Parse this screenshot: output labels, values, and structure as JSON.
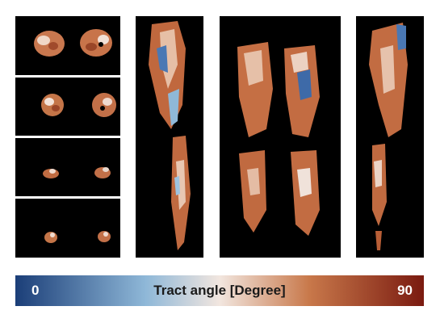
{
  "figure": {
    "panels": [
      {
        "name": "axial-slice-1",
        "view": "axial"
      },
      {
        "name": "axial-slice-2",
        "view": "axial"
      },
      {
        "name": "axial-slice-3",
        "view": "axial"
      },
      {
        "name": "axial-slice-4",
        "view": "axial"
      },
      {
        "name": "sagittal-view-left",
        "view": "sagittal"
      },
      {
        "name": "coronal-view",
        "view": "coronal"
      },
      {
        "name": "sagittal-view-right",
        "view": "sagittal"
      }
    ]
  },
  "colorbar": {
    "min_label": "0",
    "max_label": "90",
    "title": "Tract angle [Degree]",
    "colors": {
      "low": "#1b3e78",
      "mid_low": "#8fb8d8",
      "mid": "#f2e6df",
      "mid_high": "#c8784a",
      "high": "#7a1a10"
    }
  }
}
